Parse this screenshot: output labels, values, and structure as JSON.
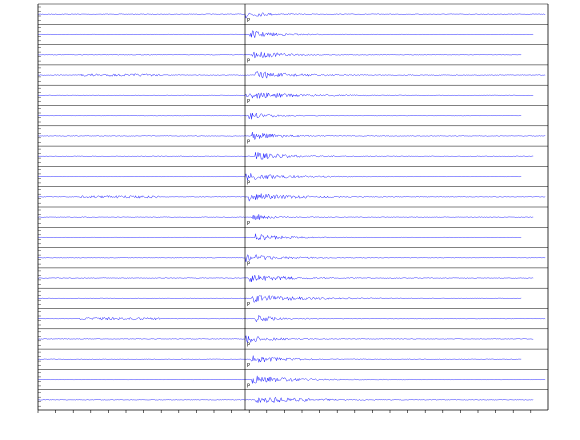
{
  "traces": [
    {
      "pick": "P"
    },
    {
      "pick": null
    },
    {
      "pick": "P"
    },
    {
      "pick": null
    },
    {
      "pick": "P"
    },
    {
      "pick": null
    },
    {
      "pick": "P"
    },
    {
      "pick": null
    },
    {
      "pick": "P"
    },
    {
      "pick": null
    },
    {
      "pick": "P"
    },
    {
      "pick": null
    },
    {
      "pick": "P"
    },
    {
      "pick": null
    },
    {
      "pick": "P"
    },
    {
      "pick": null
    },
    {
      "pick": "P"
    },
    {
      "pick": "P"
    },
    {
      "pick": "P"
    },
    {
      "pick": null
    }
  ]
}
